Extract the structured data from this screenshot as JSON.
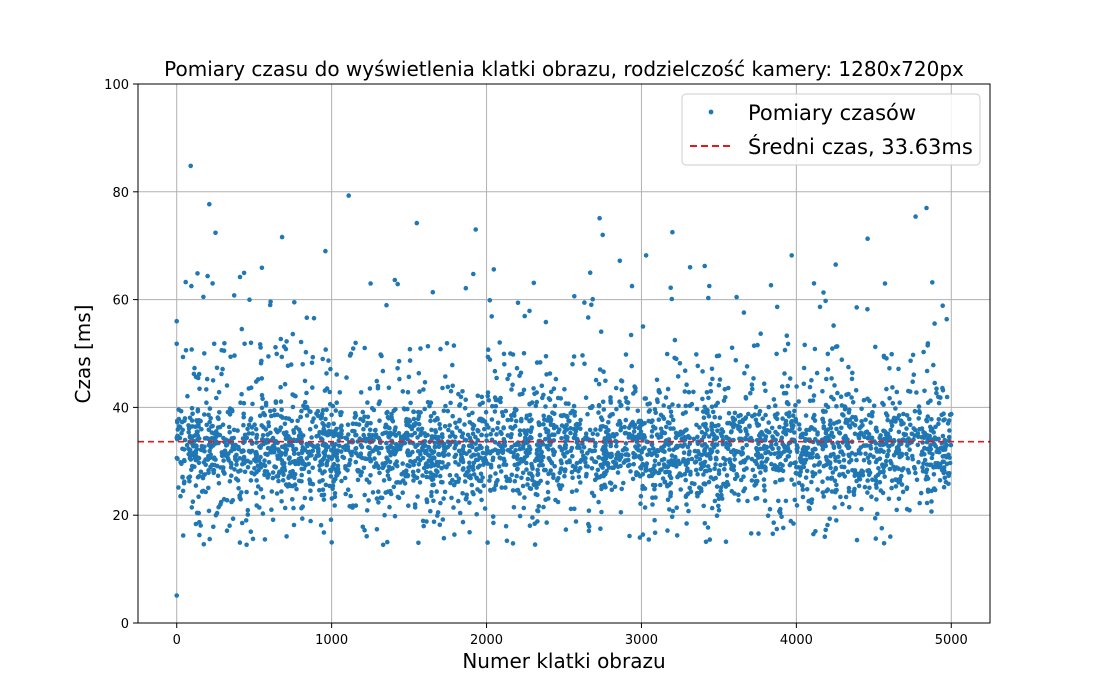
{
  "chart_data": {
    "type": "scatter",
    "title": "Pomiary czasu do wyświetlenia klatki obrazu, rodzielczość kamery: 1280x720px",
    "xlabel": "Numer klatki obrazu",
    "ylabel": "Czas [ms]",
    "xlim": [
      -250,
      5250
    ],
    "ylim": [
      0,
      100
    ],
    "xticks": [
      0,
      1000,
      2000,
      3000,
      4000,
      5000
    ],
    "yticks": [
      0,
      20,
      40,
      60,
      80,
      100
    ],
    "grid": true,
    "legend_position": "top-right",
    "series": [
      {
        "name": "Pomiary czasów",
        "kind": "points",
        "color": "#1f77b4",
        "frame_range": [
          0,
          5000
        ],
        "main_band": [
          20,
          45
        ],
        "min": 5.1,
        "max": 84.8,
        "x": [
          0,
          0,
          0,
          90,
          210,
          250,
          1110,
          1550,
          1930,
          2730,
          2750,
          3030,
          3200,
          4460,
          4840,
          4770,
          550,
          680,
          960,
          2860,
          3970,
          4110
        ],
        "y": [
          5.1,
          56.0,
          51.8,
          84.8,
          77.7,
          72.4,
          79.3,
          74.2,
          73.0,
          75.1,
          72.0,
          68.2,
          72.5,
          71.3,
          77.0,
          75.4,
          65.9,
          71.6,
          69.0,
          67.2,
          68.2,
          16.5
        ]
      },
      {
        "name": "Średni czas, 33.63ms",
        "kind": "hline",
        "y": 33.63,
        "color": "#e31a1c",
        "linestyle": "dashed"
      }
    ]
  }
}
